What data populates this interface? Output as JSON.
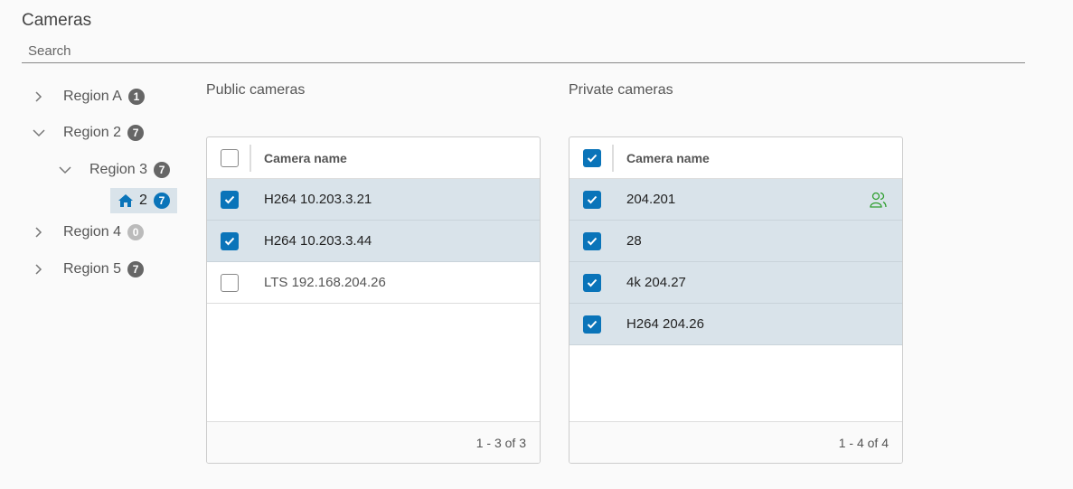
{
  "header": {
    "title": "Cameras",
    "search_placeholder": "Search"
  },
  "tree": [
    {
      "label": "Region A",
      "count": "1",
      "expanded": false
    },
    {
      "label": "Region 2",
      "count": "7",
      "expanded": true
    },
    {
      "label": "Region 3",
      "count": "7",
      "expanded": true
    },
    {
      "label": "2",
      "count": "7",
      "icon": "home-icon",
      "selected": true
    },
    {
      "label": "Region 4",
      "count": "0",
      "expanded": false
    },
    {
      "label": "Region 5",
      "count": "7",
      "expanded": false
    }
  ],
  "public": {
    "title": "Public cameras",
    "column": "Camera name",
    "header_checked": false,
    "rows": [
      {
        "name": "H264 10.203.3.21",
        "checked": true
      },
      {
        "name": "H264 10.203.3.44",
        "checked": true
      },
      {
        "name": "LTS 192.168.204.26",
        "checked": false
      }
    ],
    "pagination": "1 - 3 of 3"
  },
  "private": {
    "title": "Private cameras",
    "column": "Camera name",
    "header_checked": true,
    "rows": [
      {
        "name": "204.201",
        "checked": true,
        "icon": "shared-users-icon"
      },
      {
        "name": "28",
        "checked": true
      },
      {
        "name": "4k 204.27",
        "checked": true
      },
      {
        "name": "H264 204.26",
        "checked": true
      }
    ],
    "pagination": "1 - 4 of 4"
  },
  "colors": {
    "accent": "#0a74b9",
    "selected_row": "#d9e3ea",
    "shared_icon": "#2e9e2e"
  }
}
